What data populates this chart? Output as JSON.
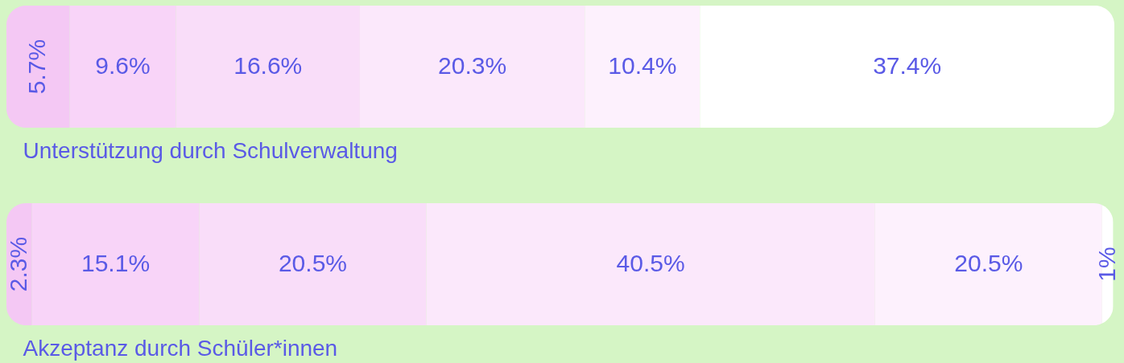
{
  "chart_data": {
    "type": "bar",
    "orientation": "horizontal",
    "stacked": true,
    "categories": [
      "Unterstützung durch Schulverwaltung",
      "Akzeptanz durch Schüler*innen"
    ],
    "series": [
      {
        "color": "#f4c8f4",
        "values": [
          5.7,
          2.3
        ],
        "value_labels": [
          "5.7%",
          "2.3%"
        ]
      },
      {
        "color": "#f8d4f8",
        "values": [
          9.6,
          15.1
        ],
        "value_labels": [
          "9.6%",
          "15.1%"
        ]
      },
      {
        "color": "#f9ddf9",
        "values": [
          16.6,
          20.5
        ],
        "value_labels": [
          "16.6%",
          "20.5%"
        ]
      },
      {
        "color": "#fbe8fb",
        "values": [
          20.3,
          40.5
        ],
        "value_labels": [
          "20.3%",
          "40.5%"
        ]
      },
      {
        "color": "#fdf1fd",
        "values": [
          10.4,
          20.5
        ],
        "value_labels": [
          "10.4%",
          "20.5%"
        ]
      },
      {
        "color": "#ffffff",
        "values": [
          37.4,
          1
        ],
        "value_labels": [
          "37.4%",
          "1%"
        ]
      }
    ]
  }
}
